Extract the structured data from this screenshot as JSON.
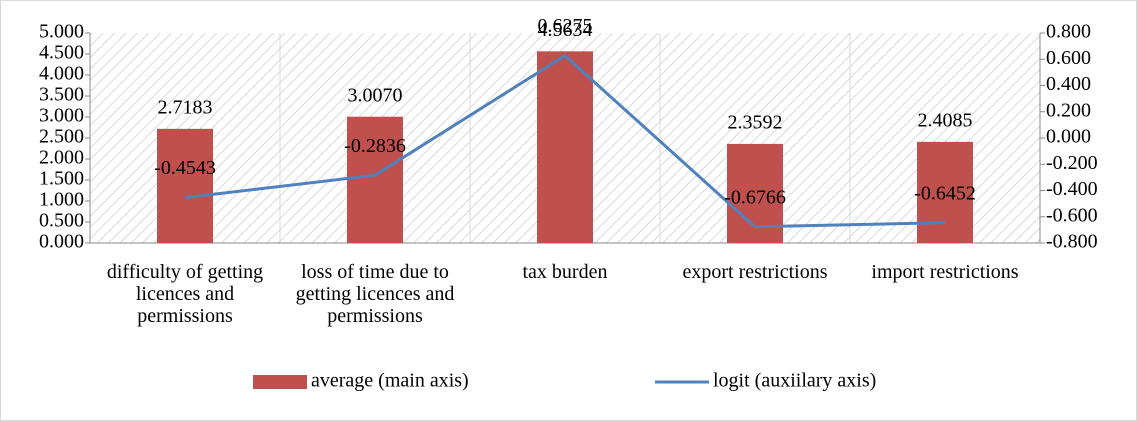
{
  "chart_data": {
    "type": "bar-line",
    "categories": [
      "difficulty of getting licences and permissions",
      "loss of time due to getting licences and permissions",
      "tax burden",
      "export restrictions",
      "import restrictions"
    ],
    "series": [
      {
        "name": "average (main axis)",
        "type": "bar",
        "color": "#c0504d",
        "values": [
          2.7183,
          3.007,
          4.5634,
          2.3592,
          2.4085
        ],
        "value_labels": [
          "2.7183",
          "3.0070",
          "4.5634",
          "2.3592",
          "2.4085"
        ]
      },
      {
        "name": "logit (auxiilary axis)",
        "type": "line",
        "axis": "y2",
        "color": "#4f81bd",
        "values": [
          -0.4543,
          -0.2836,
          0.6275,
          -0.6766,
          -0.6452
        ]
      }
    ],
    "ylim": [
      0,
      5
    ],
    "yticks": [
      {
        "value": 0,
        "label": "0.000"
      },
      {
        "value": 0.5,
        "label": "0.500"
      },
      {
        "value": 1,
        "label": "1.000"
      },
      {
        "value": 1.5,
        "label": "1.500"
      },
      {
        "value": 2,
        "label": "2.000"
      },
      {
        "value": 2.5,
        "label": "2.500"
      },
      {
        "value": 3,
        "label": "3.000"
      },
      {
        "value": 3.5,
        "label": "3.500"
      },
      {
        "value": 4,
        "label": "4.000"
      },
      {
        "value": 4.5,
        "label": "4.500"
      },
      {
        "value": 5,
        "label": "5.000"
      }
    ],
    "y2lim": [
      -0.8,
      0.8
    ],
    "y2ticks": [
      {
        "value": -0.8,
        "label": "-0.800"
      },
      {
        "value": -0.6,
        "label": "-0.600"
      },
      {
        "value": -0.4,
        "label": "-0.400"
      },
      {
        "value": -0.2,
        "label": "-0.200"
      },
      {
        "value": 0,
        "label": "0.000"
      },
      {
        "value": 0.2,
        "label": "0.200"
      },
      {
        "value": 0.4,
        "label": "0.400"
      },
      {
        "value": 0.6,
        "label": "0.600"
      },
      {
        "value": 0.8,
        "label": "0.800"
      }
    ],
    "legend": "bottom"
  }
}
